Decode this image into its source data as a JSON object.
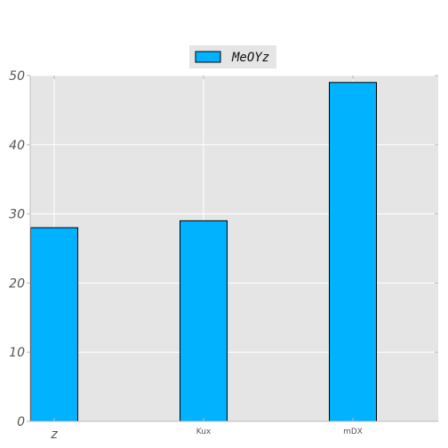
{
  "chart_data": {
    "type": "bar",
    "categories": [
      "z",
      "Kux",
      "mDX"
    ],
    "series": [
      {
        "name": "MeOYz",
        "values": [
          28,
          29,
          49
        ]
      }
    ],
    "title": "",
    "xlabel": "",
    "ylabel": "",
    "ylim": [
      0,
      50
    ],
    "yticks": [
      0,
      10,
      20,
      30,
      40,
      50
    ],
    "grid": true,
    "legend": "top-center",
    "colors": {
      "bar": "#00b2ff",
      "plot_background": "#e5e5e5",
      "grid": "#ffffff",
      "bar_edge": "#000000"
    }
  }
}
